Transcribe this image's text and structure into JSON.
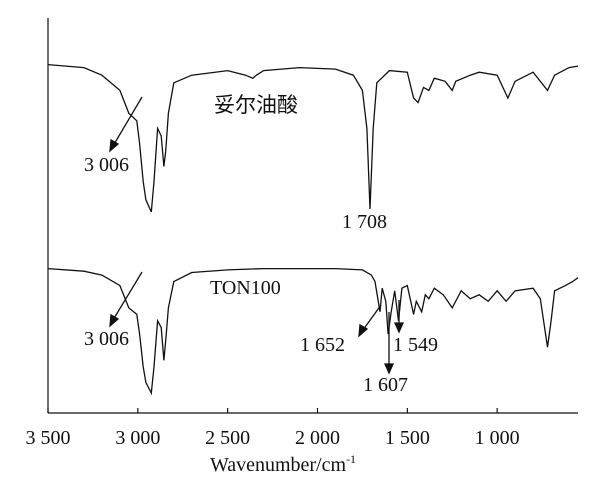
{
  "chart_data": {
    "type": "line",
    "xlabel": "Wavenumber/cm",
    "xlabel_sup": "-1",
    "x_axis_reversed": true,
    "xlim": [
      3500,
      550
    ],
    "x_ticks": [
      3500,
      3000,
      2500,
      2000,
      1500,
      1000
    ],
    "x_tick_labels": [
      "3 500",
      "3 000",
      "2 500",
      "2 000",
      "1 500",
      "1 000"
    ],
    "y_axis_shown": false,
    "grid": false,
    "legend": "none",
    "series": [
      {
        "name": "妥尔油酸",
        "offset": "top",
        "points": [
          [
            3500,
            0.97
          ],
          [
            3300,
            0.95
          ],
          [
            3200,
            0.9
          ],
          [
            3100,
            0.8
          ],
          [
            3050,
            0.65
          ],
          [
            3006,
            0.6
          ],
          [
            2990,
            0.45
          ],
          [
            2970,
            0.2
          ],
          [
            2955,
            0.08
          ],
          [
            2925,
            0.0
          ],
          [
            2910,
            0.2
          ],
          [
            2890,
            0.55
          ],
          [
            2870,
            0.5
          ],
          [
            2855,
            0.3
          ],
          [
            2845,
            0.4
          ],
          [
            2830,
            0.65
          ],
          [
            2800,
            0.85
          ],
          [
            2700,
            0.9
          ],
          [
            2500,
            0.93
          ],
          [
            2400,
            0.9
          ],
          [
            2360,
            0.88
          ],
          [
            2340,
            0.9
          ],
          [
            2300,
            0.93
          ],
          [
            2100,
            0.95
          ],
          [
            1900,
            0.94
          ],
          [
            1800,
            0.9
          ],
          [
            1750,
            0.8
          ],
          [
            1725,
            0.55
          ],
          [
            1708,
            0.02
          ],
          [
            1690,
            0.55
          ],
          [
            1670,
            0.85
          ],
          [
            1600,
            0.93
          ],
          [
            1500,
            0.92
          ],
          [
            1465,
            0.75
          ],
          [
            1440,
            0.72
          ],
          [
            1410,
            0.82
          ],
          [
            1380,
            0.8
          ],
          [
            1350,
            0.88
          ],
          [
            1290,
            0.86
          ],
          [
            1250,
            0.8
          ],
          [
            1230,
            0.86
          ],
          [
            1150,
            0.9
          ],
          [
            1100,
            0.92
          ],
          [
            1000,
            0.9
          ],
          [
            940,
            0.75
          ],
          [
            900,
            0.86
          ],
          [
            800,
            0.92
          ],
          [
            720,
            0.8
          ],
          [
            680,
            0.9
          ],
          [
            600,
            0.95
          ],
          [
            550,
            0.96
          ]
        ]
      },
      {
        "name": "TON100",
        "offset": "bottom",
        "points": [
          [
            3500,
            0.95
          ],
          [
            3300,
            0.93
          ],
          [
            3200,
            0.9
          ],
          [
            3100,
            0.82
          ],
          [
            3050,
            0.65
          ],
          [
            3006,
            0.6
          ],
          [
            2990,
            0.45
          ],
          [
            2970,
            0.2
          ],
          [
            2955,
            0.08
          ],
          [
            2925,
            0.0
          ],
          [
            2910,
            0.2
          ],
          [
            2890,
            0.55
          ],
          [
            2870,
            0.5
          ],
          [
            2855,
            0.25
          ],
          [
            2845,
            0.4
          ],
          [
            2830,
            0.65
          ],
          [
            2800,
            0.85
          ],
          [
            2700,
            0.92
          ],
          [
            2500,
            0.94
          ],
          [
            2300,
            0.95
          ],
          [
            2100,
            0.95
          ],
          [
            1900,
            0.95
          ],
          [
            1750,
            0.94
          ],
          [
            1700,
            0.9
          ],
          [
            1680,
            0.85
          ],
          [
            1652,
            0.62
          ],
          [
            1640,
            0.8
          ],
          [
            1620,
            0.7
          ],
          [
            1607,
            0.45
          ],
          [
            1590,
            0.62
          ],
          [
            1570,
            0.78
          ],
          [
            1549,
            0.55
          ],
          [
            1530,
            0.8
          ],
          [
            1500,
            0.82
          ],
          [
            1465,
            0.6
          ],
          [
            1450,
            0.7
          ],
          [
            1420,
            0.62
          ],
          [
            1400,
            0.75
          ],
          [
            1380,
            0.72
          ],
          [
            1350,
            0.8
          ],
          [
            1300,
            0.75
          ],
          [
            1250,
            0.65
          ],
          [
            1200,
            0.78
          ],
          [
            1150,
            0.72
          ],
          [
            1100,
            0.75
          ],
          [
            1050,
            0.7
          ],
          [
            1000,
            0.78
          ],
          [
            950,
            0.7
          ],
          [
            900,
            0.78
          ],
          [
            800,
            0.8
          ],
          [
            760,
            0.72
          ],
          [
            720,
            0.35
          ],
          [
            700,
            0.55
          ],
          [
            680,
            0.78
          ],
          [
            620,
            0.82
          ],
          [
            580,
            0.85
          ],
          [
            550,
            0.88
          ]
        ]
      }
    ],
    "annotations": [
      {
        "text": "3 006",
        "target_series": 0,
        "x": 3006
      },
      {
        "text": "1 708",
        "target_series": 0,
        "x": 1708
      },
      {
        "text": "3 006",
        "target_series": 1,
        "x": 3006
      },
      {
        "text": "1 652",
        "target_series": 1,
        "x": 1652
      },
      {
        "text": "1 607",
        "target_series": 1,
        "x": 1607
      },
      {
        "text": "1 549",
        "target_series": 1,
        "x": 1549
      }
    ]
  }
}
